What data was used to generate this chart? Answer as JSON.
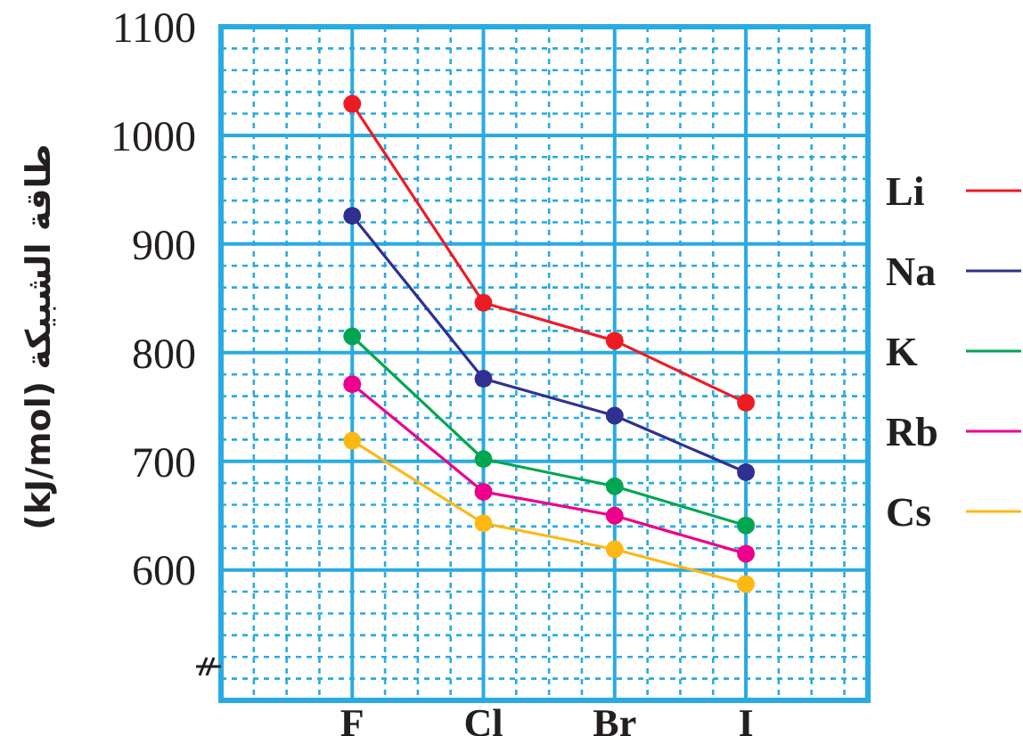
{
  "chart_data": {
    "type": "line",
    "ylabel": "طاقة الشبيكة (kJ/mol)",
    "categories": [
      "F",
      "Cl",
      "Br",
      "I"
    ],
    "ylim": [
      480,
      1100
    ],
    "yticks": [
      600,
      700,
      800,
      900,
      1000,
      1100
    ],
    "grid": true,
    "legend": "right",
    "marker": "circle",
    "series": [
      {
        "name": "Li",
        "color": "#ed1c24",
        "values": [
          1029,
          846,
          811,
          754
        ]
      },
      {
        "name": "Na",
        "color": "#2e3192",
        "values": [
          926,
          776,
          742,
          690
        ]
      },
      {
        "name": "K",
        "color": "#00a651",
        "values": [
          815,
          702,
          677,
          641
        ]
      },
      {
        "name": "Rb",
        "color": "#ec008c",
        "values": [
          771,
          672,
          650,
          615
        ]
      },
      {
        "name": "Cs",
        "color": "#fdb913",
        "values": [
          719,
          643,
          619,
          587
        ]
      }
    ]
  }
}
